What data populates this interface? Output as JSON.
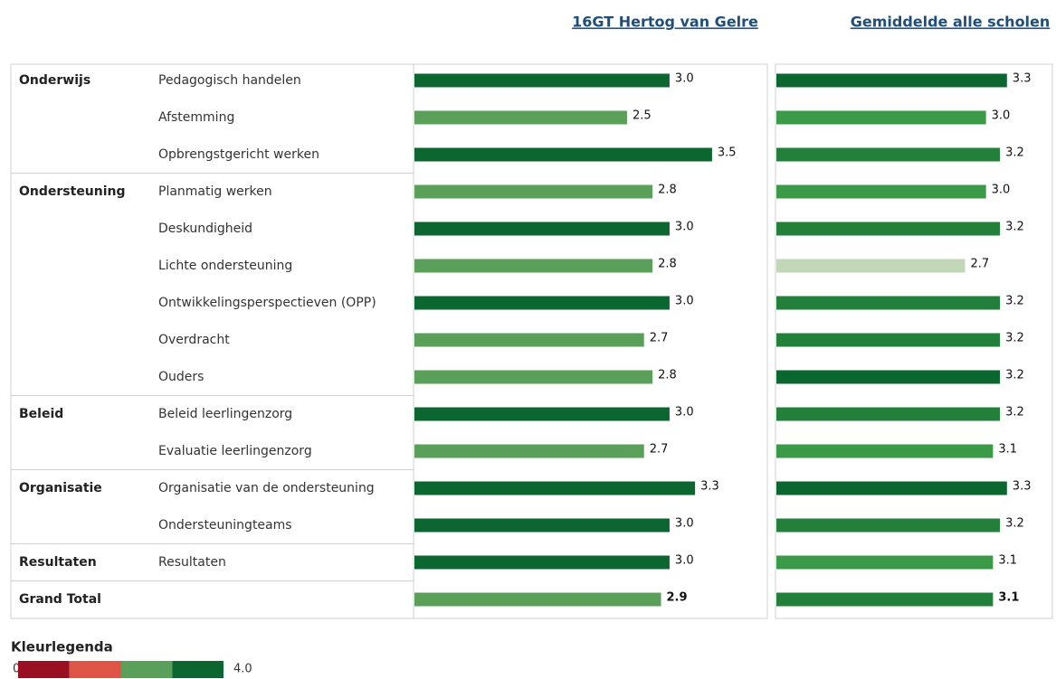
{
  "rows": {
    "groups": [
      "Onderwijs",
      null,
      null,
      "Ondersteuning",
      null,
      null,
      null,
      null,
      null,
      "Beleid",
      null,
      "Organisatie",
      null,
      "Resultaten",
      "Grand Total"
    ],
    "categories": [
      "Pedagogisch handelen",
      "Afstemming",
      "Opbrengstgericht werken",
      "Planmatig werken",
      "Deskundigheid",
      "Lichte ondersteuning",
      "Ontwikkelingsperspectieven (OPP)",
      "Overdracht",
      "Ouders",
      "Beleid leerlingenzorg",
      "Evaluatie leerlingenzorg",
      "Organisatie van de ondersteuning",
      "Ondersteuningteams",
      "Resultaten",
      null
    ]
  },
  "chart_data": [
    {
      "type": "bar",
      "title": "16GT Hertog van Gelre",
      "xlim": [
        0,
        4.15
      ],
      "values": [
        3.0,
        2.5,
        3.5,
        2.8,
        3.0,
        2.8,
        3.0,
        2.7,
        2.8,
        3.0,
        2.7,
        3.3,
        3.0,
        3.0,
        2.9
      ],
      "value_labels": [
        "3.0",
        "2.5",
        "3.5",
        "2.8",
        "3.0",
        "2.8",
        "3.0",
        "2.7",
        "2.8",
        "3.0",
        "2.7",
        "3.3",
        "3.0",
        "3.0",
        "2.9"
      ],
      "colors": [
        "#0b6630",
        "#5aa05a",
        "#0b6630",
        "#5aa05a",
        "#0b6630",
        "#5aa05a",
        "#0b6630",
        "#5aa05a",
        "#5aa05a",
        "#0b6630",
        "#5aa05a",
        "#0b6630",
        "#0b6630",
        "#0b6630",
        "#5aa05a"
      ]
    },
    {
      "type": "bar",
      "title": "Gemiddelde alle scholen",
      "xlim": [
        0,
        3.95
      ],
      "values": [
        3.3,
        3.0,
        3.2,
        3.0,
        3.2,
        2.7,
        3.2,
        3.2,
        3.2,
        3.2,
        3.1,
        3.3,
        3.2,
        3.1,
        3.1
      ],
      "value_labels": [
        "3.3",
        "3.0",
        "3.2",
        "3.0",
        "3.2",
        "2.7",
        "3.2",
        "3.2",
        "3.2",
        "3.2",
        "3.1",
        "3.3",
        "3.2",
        "3.1",
        "3.1"
      ],
      "colors": [
        "#0b6630",
        "#3a9a48",
        "#23803a",
        "#3a9a48",
        "#23803a",
        "#c2d6b8",
        "#23803a",
        "#23803a",
        "#0b6630",
        "#23803a",
        "#3a9a48",
        "#0b6630",
        "#23803a",
        "#3a9a48",
        "#23803a"
      ]
    }
  ],
  "legend": {
    "title": "Kleurlegenda",
    "min_label": "0.0",
    "max_label": "4.0",
    "colors": [
      "#9b0f23",
      "#e05445",
      "#5aa05a",
      "#0b6630"
    ]
  }
}
